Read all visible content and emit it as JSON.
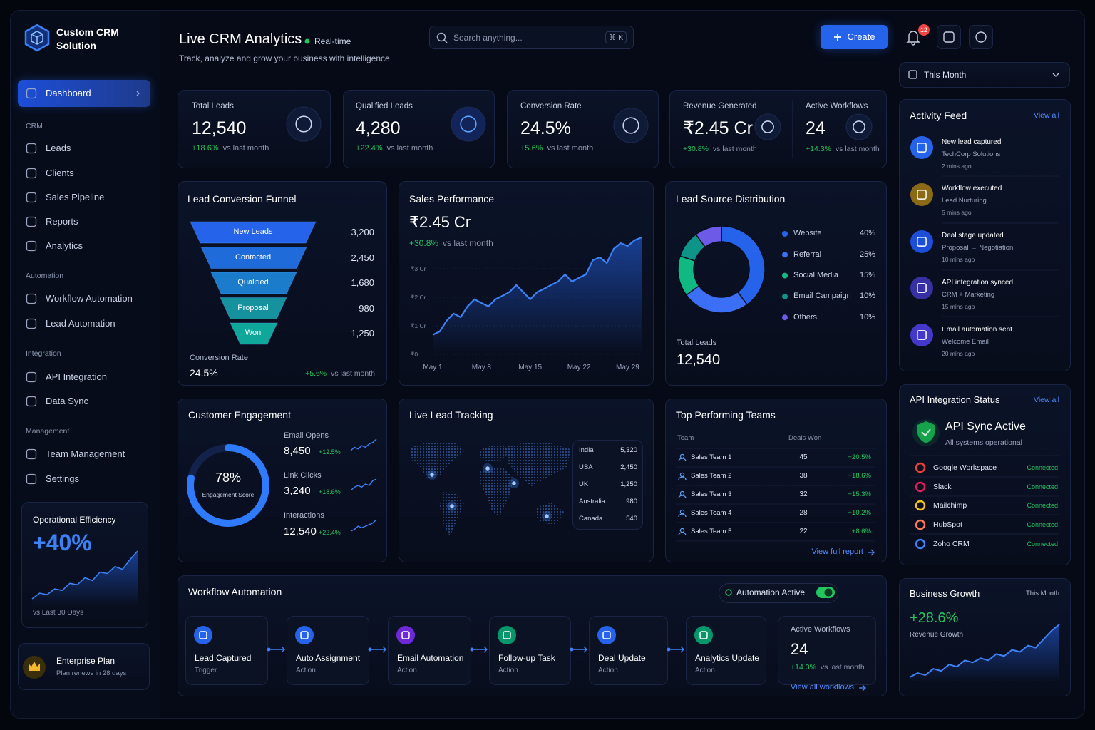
{
  "sidebar": {
    "brand": "Custom CRM Solution",
    "active": "Dashboard",
    "sections": [
      {
        "title": "CRM",
        "items": [
          "Leads",
          "Clients",
          "Sales Pipeline",
          "Reports",
          "Analytics"
        ]
      },
      {
        "title": "Automation",
        "items": [
          "Workflow Automation",
          "Lead Automation"
        ]
      },
      {
        "title": "Integration",
        "items": [
          "API Integration",
          "Data Sync"
        ]
      },
      {
        "title": "Management",
        "items": [
          "Team Management",
          "Settings"
        ]
      }
    ],
    "efficiency": {
      "title": "Operational Efficiency",
      "value": "+40%",
      "note": "vs Last 30 Days",
      "trend": [
        10,
        14,
        13,
        17,
        16,
        21,
        20,
        25,
        23,
        29,
        28,
        33,
        31,
        38,
        44
      ]
    },
    "plan": {
      "name": "Enterprise Plan",
      "note": "Plan renews in 28 days"
    }
  },
  "header": {
    "title": "Live CRM Analytics",
    "status": "Real-time",
    "subtitle": "Track, analyze and grow your business with intelligence.",
    "search": "Search anything...",
    "shortcut": "⌘ K",
    "create": "Create",
    "notifications": "12",
    "period": "This Month"
  },
  "kpis": [
    {
      "label": "Total Leads",
      "value": "12,540",
      "change": "+18.6%",
      "note": "vs last month"
    },
    {
      "label": "Qualified Leads",
      "value": "4,280",
      "change": "+22.4%",
      "note": "vs last month"
    },
    {
      "label": "Conversion Rate",
      "value": "24.5%",
      "change": "+5.6%",
      "note": "vs last month"
    },
    {
      "label": "Revenue Generated",
      "value": "₹2.45 Cr",
      "change": "+30.8%",
      "note": "vs last month"
    },
    {
      "label": "Active Workflows",
      "value": "24",
      "change": "+14.3%",
      "note": "vs last month"
    }
  ],
  "funnel": {
    "title": "Lead Conversion Funnel",
    "stages": [
      {
        "name": "New Leads",
        "value": "3,200"
      },
      {
        "name": "Contacted",
        "value": "2,450"
      },
      {
        "name": "Qualified",
        "value": "1,680"
      },
      {
        "name": "Proposal",
        "value": "980"
      },
      {
        "name": "Won",
        "value": "1,250"
      }
    ],
    "footer": {
      "label": "Conversion Rate",
      "value": "24.5%",
      "change": "+5.6%",
      "note": "vs last month"
    }
  },
  "sales": {
    "title": "Sales Performance",
    "value": "₹2.45 Cr",
    "change": "+30.8%",
    "note": "vs last month",
    "chart": {
      "type": "area",
      "x": [
        1,
        2,
        3,
        4,
        5,
        6,
        7,
        8,
        9,
        10,
        11,
        12,
        13,
        14,
        15,
        16,
        17,
        18,
        19,
        20,
        21,
        22,
        23,
        24,
        25,
        26,
        27,
        28,
        29,
        30,
        31
      ],
      "values": [
        0.68,
        0.8,
        1.18,
        1.43,
        1.3,
        1.68,
        1.93,
        1.8,
        1.68,
        1.93,
        2.05,
        2.18,
        2.43,
        2.18,
        1.93,
        2.18,
        2.3,
        2.43,
        2.55,
        2.8,
        2.55,
        2.68,
        2.8,
        3.3,
        3.4,
        3.2,
        3.7,
        3.9,
        3.8,
        4.0,
        4.1
      ],
      "xlim": [
        1,
        31
      ],
      "xticks": [
        {
          "value": 1,
          "label": "May 1"
        },
        {
          "value": 8,
          "label": "May 8"
        },
        {
          "value": 15,
          "label": "May 15"
        },
        {
          "value": 22,
          "label": "May 22"
        },
        {
          "value": 29,
          "label": "May 29"
        }
      ],
      "ylim": [
        0,
        4.2
      ],
      "yticks": [
        {
          "value": 0,
          "label": "₹0"
        },
        {
          "value": 1,
          "label": "₹1 Cr"
        },
        {
          "value": 2,
          "label": "₹2 Cr"
        },
        {
          "value": 3,
          "label": "₹3 Cr"
        }
      ],
      "color": "#3b82f6"
    }
  },
  "sources": {
    "title": "Lead Source Distribution",
    "chart": {
      "type": "donut",
      "categories": [
        "Website",
        "Referral",
        "Social Media",
        "Email Campaign",
        "Others"
      ],
      "values": [
        40,
        25,
        15,
        10,
        10
      ],
      "value_labels": [
        "40%",
        "25%",
        "15%",
        "10%",
        "10%"
      ],
      "colors": [
        "#2563eb",
        "#3b6ff5",
        "#10b981",
        "#0e9488",
        "#6d5ae6"
      ]
    },
    "total_label": "Total Leads",
    "total": "12,540"
  },
  "engagement": {
    "title": "Customer Engagement",
    "score": {
      "value": 78,
      "label": "78%"
    },
    "score_label": "Engagement Score",
    "metrics": [
      {
        "name": "Email Opens",
        "value": "8,450",
        "change": "+12.5%",
        "trend": [
          3,
          5,
          4,
          6,
          5,
          7,
          8,
          10
        ]
      },
      {
        "name": "Link Clicks",
        "value": "3,240",
        "change": "+18.6%",
        "trend": [
          2,
          4,
          5,
          4,
          6,
          5,
          8,
          9
        ]
      },
      {
        "name": "Interactions",
        "value": "12,540",
        "change": "+22.4%",
        "trend": [
          3,
          4,
          6,
          5,
          6,
          7,
          8,
          10
        ]
      }
    ]
  },
  "tracking": {
    "title": "Live Lead Tracking",
    "countries": [
      {
        "name": "India",
        "value": "5,320"
      },
      {
        "name": "USA",
        "value": "2,450"
      },
      {
        "name": "UK",
        "value": "1,250"
      },
      {
        "name": "Australia",
        "value": "980"
      },
      {
        "name": "Canada",
        "value": "540"
      }
    ]
  },
  "teams": {
    "title": "Top Performing Teams",
    "columns": [
      "Team",
      "Deals Won"
    ],
    "rows": [
      {
        "name": "Sales Team 1",
        "deals": "45",
        "change": "+20.5%"
      },
      {
        "name": "Sales Team 2",
        "deals": "38",
        "change": "+18.6%"
      },
      {
        "name": "Sales Team 3",
        "deals": "32",
        "change": "+15.3%"
      },
      {
        "name": "Sales Team 4",
        "deals": "28",
        "change": "+10.2%"
      },
      {
        "name": "Sales Team 5",
        "deals": "22",
        "change": "+8.6%"
      }
    ],
    "link": "View full report"
  },
  "workflow": {
    "title": "Workflow Automation",
    "status": "Automation Active",
    "steps": [
      {
        "name": "Lead Captured",
        "type": "Trigger"
      },
      {
        "name": "Auto Assignment",
        "type": "Action"
      },
      {
        "name": "Email Automation",
        "type": "Action"
      },
      {
        "name": "Follow-up Task",
        "type": "Action"
      },
      {
        "name": "Deal Update",
        "type": "Action"
      },
      {
        "name": "Analytics Update",
        "type": "Action"
      }
    ],
    "summary": {
      "label": "Active Workflows",
      "value": "24",
      "change": "+14.3%",
      "note": "vs last month",
      "link": "View all workflows"
    }
  },
  "activity": {
    "title": "Activity Feed",
    "link": "View all",
    "items": [
      {
        "title": "New lead captured",
        "detail": "TechCorp Solutions",
        "time": "2 mins ago"
      },
      {
        "title": "Workflow executed",
        "detail": "Lead Nurturing",
        "time": "5 mins ago"
      },
      {
        "title": "Deal stage updated",
        "detail": "Proposal → Negotiation",
        "time": "10 mins ago"
      },
      {
        "title": "API integration synced",
        "detail": "CRM + Marketing",
        "time": "15 mins ago"
      },
      {
        "title": "Email automation sent",
        "detail": "Welcome Email",
        "time": "20 mins ago"
      }
    ]
  },
  "api": {
    "title": "API Integration Status",
    "link": "View all",
    "status": "API Sync Active",
    "note": "All systems operational",
    "integrations": [
      {
        "name": "Google Workspace",
        "status": "Connected"
      },
      {
        "name": "Slack",
        "status": "Connected"
      },
      {
        "name": "Mailchimp",
        "status": "Connected"
      },
      {
        "name": "HubSpot",
        "status": "Connected"
      },
      {
        "name": "Zoho CRM",
        "status": "Connected"
      }
    ]
  },
  "growth": {
    "title": "Business Growth",
    "period": "This Month",
    "value": "+28.6%",
    "label": "Revenue Growth",
    "trend": [
      4,
      6,
      5,
      8,
      7,
      10,
      9,
      12,
      11,
      13,
      12,
      15,
      14,
      17,
      16,
      19,
      18,
      22,
      26,
      29
    ]
  }
}
